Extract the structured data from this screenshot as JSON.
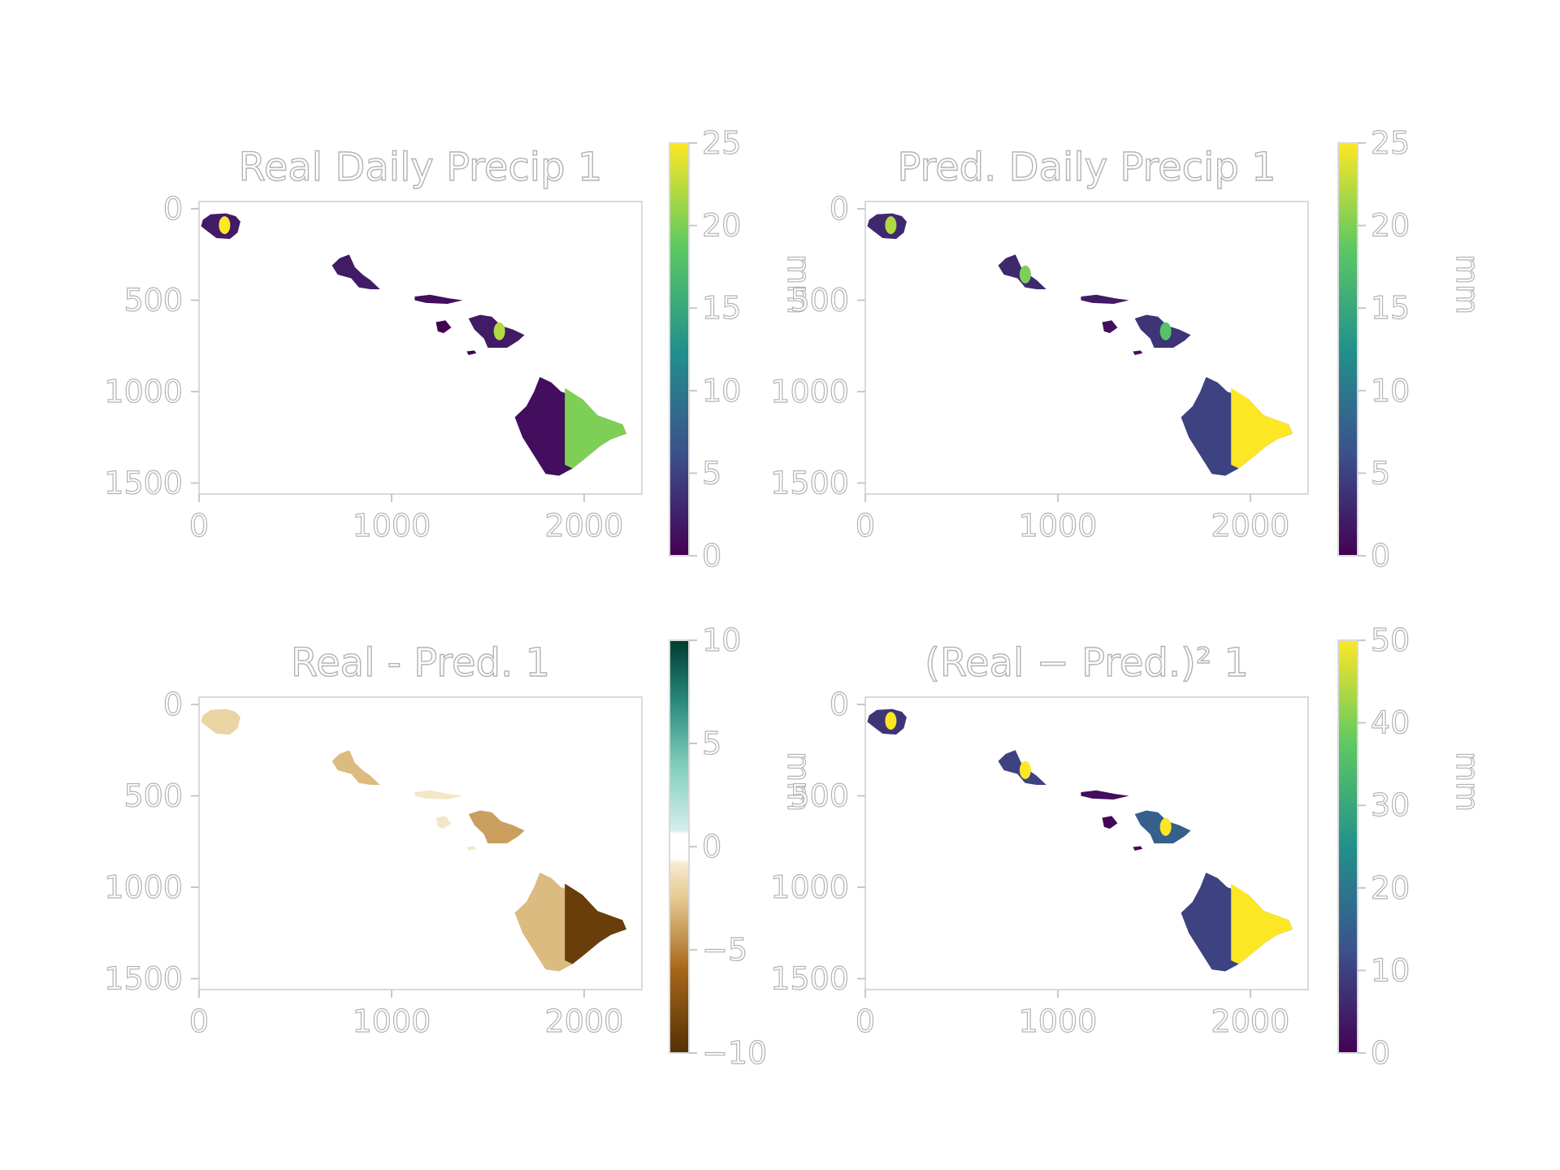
{
  "chart_data": [
    {
      "type": "heatmap",
      "title": "Real Daily Precip 1",
      "x_ticks": [
        0,
        1000,
        2000
      ],
      "y_ticks": [
        0,
        500,
        1000,
        1500
      ],
      "xlim": [
        0,
        2300
      ],
      "ylim": [
        1560,
        -40
      ],
      "y_inverted": true,
      "grid": false,
      "colormap": "viridis",
      "colorbar": {
        "label": "mm",
        "ticks": [
          0,
          5,
          10,
          15,
          20,
          25
        ],
        "range": [
          0,
          25
        ]
      },
      "regions": [
        {
          "name": "Kauai",
          "value": 2,
          "peak": 25
        },
        {
          "name": "Oahu",
          "value": 2
        },
        {
          "name": "Molokai",
          "value": 1
        },
        {
          "name": "Lanai",
          "value": 0
        },
        {
          "name": "Maui",
          "value": 2,
          "peak": 22
        },
        {
          "name": "Kahoolawe",
          "value": 0
        },
        {
          "name": "Hawaii",
          "value": 1,
          "windward": 20
        }
      ]
    },
    {
      "type": "heatmap",
      "title": "Pred. Daily Precip 1",
      "x_ticks": [
        0,
        1000,
        2000
      ],
      "y_ticks": [
        0,
        500,
        1000,
        1500
      ],
      "xlim": [
        0,
        2300
      ],
      "ylim": [
        1560,
        -40
      ],
      "y_inverted": true,
      "grid": false,
      "colormap": "viridis",
      "colorbar": {
        "label": "mm",
        "ticks": [
          0,
          5,
          10,
          15,
          20,
          25
        ],
        "range": [
          0,
          25
        ]
      },
      "regions": [
        {
          "name": "Kauai",
          "value": 3,
          "peak": 22
        },
        {
          "name": "Oahu",
          "value": 3,
          "peak": 20
        },
        {
          "name": "Molokai",
          "value": 2
        },
        {
          "name": "Lanai",
          "value": 1
        },
        {
          "name": "Maui",
          "value": 4,
          "peak": 18
        },
        {
          "name": "Kahoolawe",
          "value": 1
        },
        {
          "name": "Hawaii",
          "value": 5,
          "windward": 25
        }
      ]
    },
    {
      "type": "heatmap",
      "title": "Real - Pred. 1",
      "x_ticks": [
        0,
        1000,
        2000
      ],
      "y_ticks": [
        0,
        500,
        1000,
        1500
      ],
      "xlim": [
        0,
        2300
      ],
      "ylim": [
        1560,
        -40
      ],
      "y_inverted": true,
      "grid": false,
      "colormap": "BrBG",
      "colorbar": {
        "label": "mm",
        "ticks": [
          10,
          5,
          0,
          -5,
          -10
        ],
        "tick_labels": [
          "10",
          "5",
          "0",
          "−5",
          "−10"
        ],
        "range": [
          -10,
          10
        ]
      },
      "regions": [
        {
          "name": "Kauai",
          "value": -2
        },
        {
          "name": "Oahu",
          "value": -3
        },
        {
          "name": "Molokai",
          "value": -1
        },
        {
          "name": "Lanai",
          "value": -1
        },
        {
          "name": "Maui",
          "value": -4
        },
        {
          "name": "Kahoolawe",
          "value": -1
        },
        {
          "name": "Hawaii",
          "value": -3,
          "windward": -9
        }
      ]
    },
    {
      "type": "heatmap",
      "title": "(Real − Pred.)² 1",
      "x_ticks": [
        0,
        1000,
        2000
      ],
      "y_ticks": [
        0,
        500,
        1000,
        1500
      ],
      "xlim": [
        0,
        2300
      ],
      "ylim": [
        1560,
        -40
      ],
      "y_inverted": true,
      "grid": false,
      "colormap": "viridis",
      "colorbar": {
        "label": "mm",
        "ticks": [
          0,
          10,
          20,
          30,
          40,
          50
        ],
        "range": [
          0,
          50
        ]
      },
      "regions": [
        {
          "name": "Kauai",
          "value": 8,
          "peak": 50
        },
        {
          "name": "Oahu",
          "value": 10,
          "peak": 50
        },
        {
          "name": "Molokai",
          "value": 2
        },
        {
          "name": "Lanai",
          "value": 1
        },
        {
          "name": "Maui",
          "value": 15,
          "peak": 50
        },
        {
          "name": "Kahoolawe",
          "value": 1
        },
        {
          "name": "Hawaii",
          "value": 10,
          "windward": 50
        }
      ]
    }
  ]
}
